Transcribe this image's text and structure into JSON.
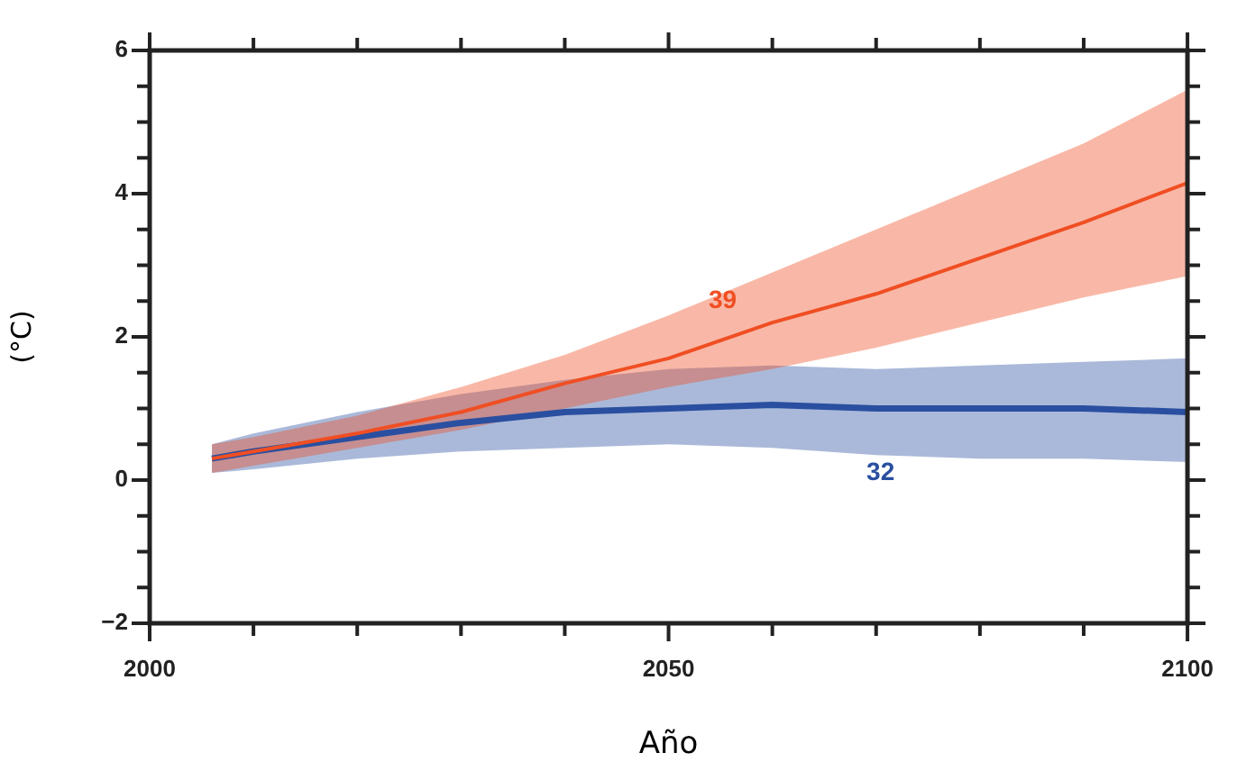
{
  "chart_data": {
    "type": "line",
    "xlabel": "Año",
    "ylabel": "(°C)",
    "xlim": [
      2000,
      2100
    ],
    "xticks": [
      2000,
      {
        "value": 2010,
        "label": null
      },
      {
        "value": 2020,
        "label": null
      },
      {
        "value": 2030,
        "label": null
      },
      {
        "value": 2040,
        "label": null
      },
      2050,
      {
        "value": 2060,
        "label": null
      },
      {
        "value": 2070,
        "label": null
      },
      {
        "value": 2080,
        "label": null
      },
      {
        "value": 2090,
        "label": null
      },
      2100
    ],
    "ylim": [
      -2,
      6
    ],
    "yticks": [
      {
        "value": -2,
        "label": "−2"
      },
      {
        "value": -1.5,
        "label": null
      },
      {
        "value": -1,
        "label": null
      },
      {
        "value": -0.5,
        "label": null
      },
      0,
      {
        "value": 0.5,
        "label": null
      },
      {
        "value": 1,
        "label": null
      },
      {
        "value": 1.5,
        "label": null
      },
      2,
      {
        "value": 2.5,
        "label": null
      },
      {
        "value": 3,
        "label": null
      },
      {
        "value": 3.5,
        "label": null
      },
      4,
      {
        "value": 4.5,
        "label": null
      },
      {
        "value": 5,
        "label": null
      },
      {
        "value": 5.5,
        "label": null
      },
      6
    ],
    "x": [
      2006,
      2010,
      2020,
      2030,
      2040,
      2050,
      2060,
      2070,
      2080,
      2090,
      2100
    ],
    "series": [
      {
        "color": "#f04e23",
        "values": [
          0.3,
          0.4,
          0.65,
          0.95,
          1.35,
          1.7,
          2.2,
          2.6,
          3.1,
          3.6,
          4.15
        ],
        "upper": [
          0.5,
          0.6,
          0.9,
          1.3,
          1.75,
          2.3,
          2.9,
          3.5,
          4.1,
          4.7,
          5.45
        ],
        "lower": [
          0.1,
          0.2,
          0.45,
          0.7,
          1.0,
          1.3,
          1.55,
          1.85,
          2.2,
          2.55,
          2.85
        ]
      },
      {
        "color": "#2a4fa0",
        "values": [
          0.3,
          0.4,
          0.6,
          0.8,
          0.95,
          1.0,
          1.05,
          1.0,
          1.0,
          1.0,
          0.95
        ],
        "upper": [
          0.5,
          0.65,
          0.95,
          1.2,
          1.4,
          1.55,
          1.6,
          1.55,
          1.6,
          1.65,
          1.7
        ],
        "lower": [
          0.1,
          0.15,
          0.3,
          0.4,
          0.45,
          0.5,
          0.45,
          0.35,
          0.3,
          0.3,
          0.25
        ]
      }
    ],
    "annotations": [
      "39",
      "32"
    ],
    "grid": false,
    "legend": false,
    "marker": "none",
    "line_style": "solid"
  }
}
